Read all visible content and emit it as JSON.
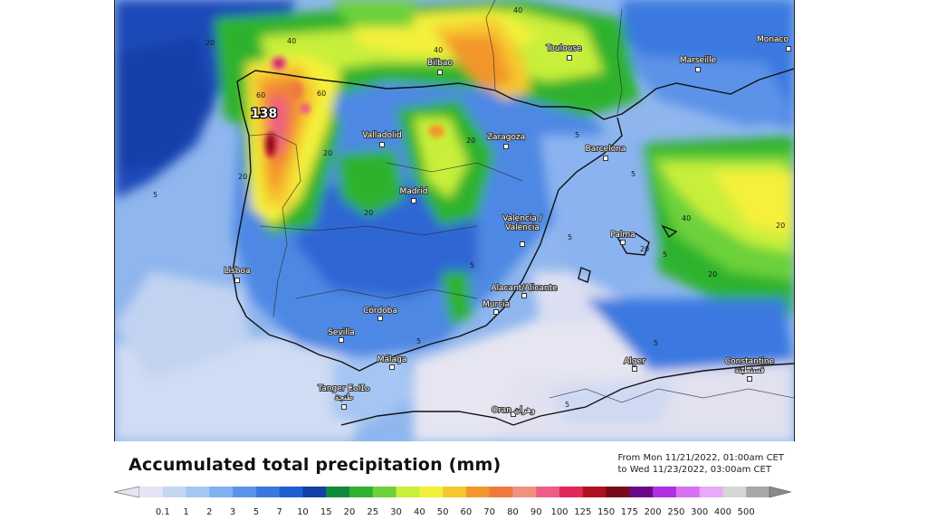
{
  "title": "Accumulated total precipitation (mm)",
  "period": {
    "from": "From Mon 11/21/2022, 01:00am CET",
    "to": "to Wed 11/23/2022, 03:00am CET"
  },
  "max_value_label": "138",
  "cities": [
    {
      "name": "Toulouse"
    },
    {
      "name": "Monaco"
    },
    {
      "name": "Marseille"
    },
    {
      "name": "Bilbao"
    },
    {
      "name": "Valladolid"
    },
    {
      "name": "Zaragoza"
    },
    {
      "name": "Barcelona"
    },
    {
      "name": "Madrid"
    },
    {
      "name": "Valencia /\nValència"
    },
    {
      "name": "Palma"
    },
    {
      "name": "Lisboa"
    },
    {
      "name": "Alacant/Alicante"
    },
    {
      "name": "Murcia"
    },
    {
      "name": "Córdoba"
    },
    {
      "name": "Sevilla"
    },
    {
      "name": "Málaga"
    },
    {
      "name": "Alger"
    },
    {
      "name": "Constantine\nقسنطينة"
    },
    {
      "name": "Tanger ⵟⴰⵏⵊⴰ\nطنجة"
    },
    {
      "name": "Oran وهران"
    }
  ],
  "contour_labels": [
    "40",
    "20",
    "40",
    "40",
    "60",
    "60",
    "20",
    "20",
    "20",
    "20",
    "5",
    "5",
    "5",
    "5",
    "5",
    "20",
    "20",
    "40",
    "20",
    "5",
    "5",
    "5",
    "5"
  ],
  "legend": {
    "values": [
      "0.1",
      "1",
      "2",
      "3",
      "5",
      "7",
      "10",
      "15",
      "20",
      "25",
      "30",
      "40",
      "50",
      "60",
      "70",
      "80",
      "90",
      "100",
      "125",
      "150",
      "175",
      "200",
      "250",
      "300",
      "400",
      "500"
    ],
    "colors": [
      "#e4e4f4",
      "#c5d6f0",
      "#a5c6f2",
      "#7fb0f0",
      "#5a93e8",
      "#3a78e0",
      "#1f5fd0",
      "#123fa8",
      "#0f8a3c",
      "#2fb22f",
      "#6cd13a",
      "#c8ef3a",
      "#f4f03a",
      "#f6c72f",
      "#f3962c",
      "#ef7a3f",
      "#f09080",
      "#ee5c87",
      "#e0285a",
      "#b01020",
      "#7a0a1a",
      "#6a0a8a",
      "#b030e0",
      "#d870f0",
      "#eaa8f8",
      "#d6d6d6",
      "#a8a8a8"
    ]
  }
}
